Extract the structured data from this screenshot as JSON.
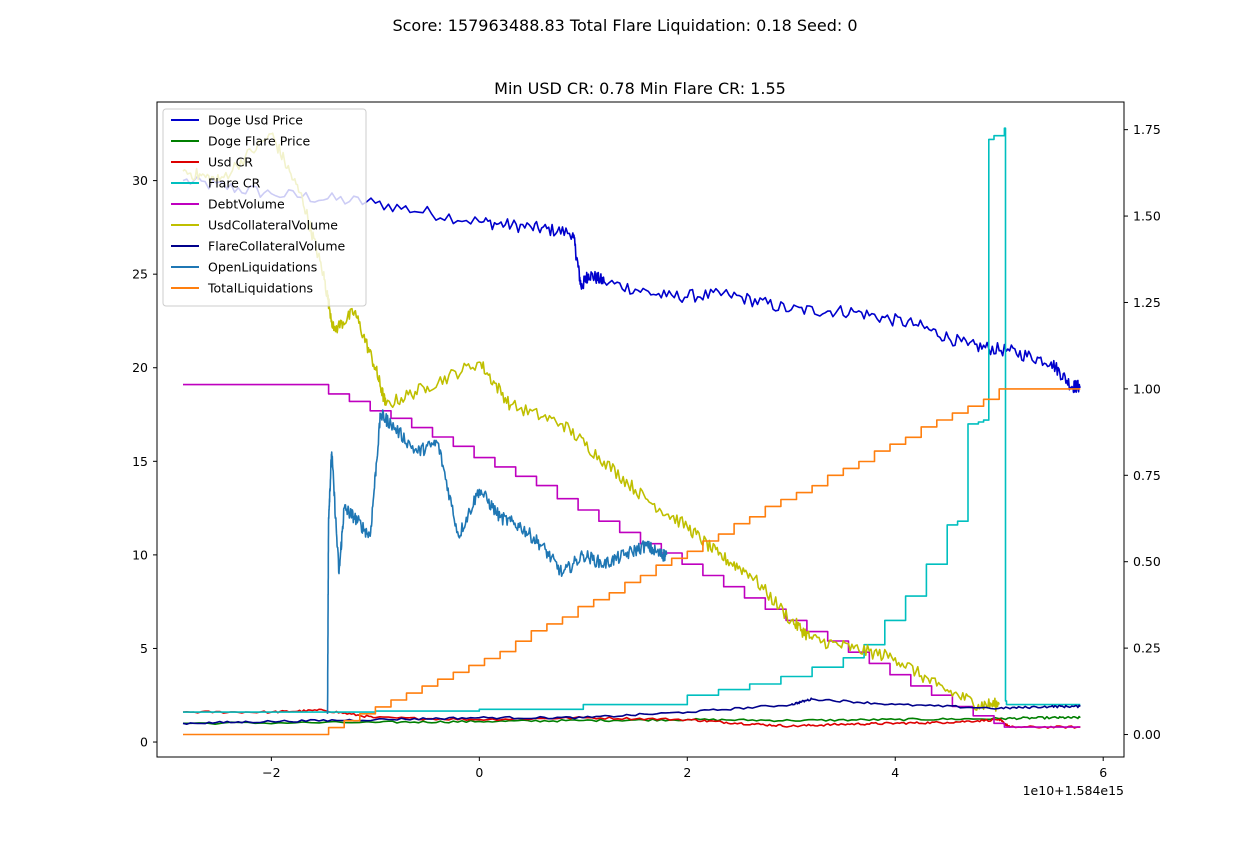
{
  "suptitle": "Score: 157963488.83 Total Flare Liquidation: 0.18 Seed: 0",
  "chart_data": {
    "type": "line",
    "title": "Min USD CR: 0.78 Min Flare CR: 1.55",
    "x_offset_label": "1e10+1.584e15",
    "xlim": [
      -3.1,
      6.2
    ],
    "ylim_left": [
      -0.8,
      34.2
    ],
    "ylim_right": [
      -0.065,
      1.83
    ],
    "x_ticks": [
      -2,
      0,
      2,
      4,
      6
    ],
    "x_tick_labels": [
      "−2",
      "0",
      "2",
      "4",
      "6"
    ],
    "y_left_ticks": [
      0,
      5,
      10,
      15,
      20,
      25,
      30
    ],
    "y_left_tick_labels": [
      "0",
      "5",
      "10",
      "15",
      "20",
      "25",
      "30"
    ],
    "y_right_ticks": [
      0,
      0.25,
      0.5,
      0.75,
      1.0,
      1.25,
      1.5,
      1.75
    ],
    "y_right_tick_labels": [
      "0.00",
      "0.25",
      "0.50",
      "0.75",
      "1.00",
      "1.25",
      "1.50",
      "1.75"
    ],
    "grid": false,
    "legend_position": "upper-left",
    "series": [
      {
        "name": "Doge Usd Price",
        "color": "#0000cc",
        "axis": "left",
        "style": "noisy",
        "x": [
          -2.85,
          -2.0,
          -1.0,
          0.0,
          0.5,
          0.9,
          0.98,
          1.05,
          1.2,
          1.8,
          2.4,
          3.0,
          3.6,
          4.2,
          4.7,
          5.1,
          5.5,
          5.7,
          5.78
        ],
        "y": [
          30.0,
          29.3,
          28.8,
          27.8,
          27.5,
          27.2,
          24.3,
          25.0,
          24.6,
          23.8,
          23.9,
          23.1,
          23.0,
          22.3,
          21.2,
          20.9,
          20.3,
          19.0,
          19.0
        ]
      },
      {
        "name": "Doge Flare Price",
        "color": "#007f00",
        "axis": "left",
        "style": "noisy",
        "x": [
          -2.85,
          -1.0,
          0.0,
          1.0,
          2.0,
          3.0,
          4.0,
          5.0,
          5.5,
          5.78
        ],
        "y": [
          1.0,
          1.05,
          1.1,
          1.15,
          1.2,
          1.15,
          1.2,
          1.25,
          1.3,
          1.3
        ]
      },
      {
        "name": "Usd CR",
        "color": "#dd0000",
        "axis": "left",
        "style": "noisy",
        "x": [
          -2.85,
          -2.0,
          -1.5,
          -1.0,
          0.0,
          1.0,
          2.0,
          2.5,
          3.0,
          3.5,
          4.0,
          4.5,
          5.0,
          5.1,
          5.78
        ],
        "y": [
          1.6,
          1.6,
          1.7,
          1.3,
          1.2,
          1.3,
          1.2,
          1.0,
          0.85,
          0.95,
          1.0,
          1.05,
          1.2,
          0.8,
          0.8
        ]
      },
      {
        "name": "Flare CR",
        "color": "#00bfbf",
        "axis": "left",
        "style": "steps",
        "x": [
          -2.85,
          -1.5,
          -1.0,
          0.0,
          1.0,
          2.0,
          2.3,
          2.6,
          2.9,
          3.2,
          3.5,
          3.7,
          3.9,
          4.1,
          4.3,
          4.5,
          4.6,
          4.7,
          4.8,
          4.85,
          4.9,
          4.95,
          5.05,
          5.06,
          5.07,
          5.78
        ],
        "y": [
          1.6,
          1.6,
          1.65,
          1.75,
          2.0,
          2.5,
          2.8,
          3.1,
          3.5,
          4.0,
          4.5,
          5.2,
          6.5,
          7.8,
          9.5,
          11.6,
          11.8,
          17.0,
          17.1,
          17.2,
          32.2,
          32.4,
          32.8,
          2.2,
          2.0,
          2.0
        ]
      },
      {
        "name": "DebtVolume",
        "color": "#bf00bf",
        "axis": "left",
        "style": "steps",
        "x": [
          -2.85,
          -1.45,
          -1.25,
          -1.05,
          -0.85,
          -0.65,
          -0.45,
          -0.25,
          -0.05,
          0.15,
          0.35,
          0.55,
          0.75,
          0.95,
          1.15,
          1.35,
          1.55,
          1.75,
          1.95,
          2.15,
          2.35,
          2.55,
          2.75,
          2.95,
          3.15,
          3.35,
          3.55,
          3.75,
          3.95,
          4.15,
          4.35,
          4.55,
          4.75,
          4.95,
          5.05,
          5.78
        ],
        "y": [
          19.1,
          18.6,
          18.2,
          17.7,
          17.3,
          16.8,
          16.3,
          15.8,
          15.2,
          14.7,
          14.2,
          13.7,
          13.0,
          12.4,
          11.8,
          11.2,
          10.6,
          10.1,
          9.5,
          8.9,
          8.3,
          7.7,
          7.1,
          6.5,
          5.9,
          5.4,
          4.8,
          4.2,
          3.6,
          3.0,
          2.5,
          1.9,
          1.4,
          1.0,
          0.8,
          0.8
        ]
      },
      {
        "name": "UsdCollateralVolume",
        "color": "#bfbf00",
        "axis": "left",
        "style": "noisy",
        "x": [
          -2.85,
          -2.5,
          -2.0,
          -1.7,
          -1.5,
          -1.4,
          -1.2,
          -1.0,
          -0.9,
          -0.5,
          0.0,
          0.3,
          0.8,
          1.2,
          1.6,
          2.0,
          2.3,
          2.6,
          3.0,
          3.2,
          3.6,
          4.0,
          4.4,
          4.8,
          5.0
        ],
        "y": [
          30.5,
          30.0,
          32.5,
          29.0,
          25.0,
          22.0,
          23.0,
          20.0,
          18.0,
          19.0,
          20.3,
          18.0,
          17.0,
          15.0,
          13.0,
          11.5,
          10.0,
          9.0,
          6.5,
          5.5,
          5.0,
          4.5,
          3.0,
          2.0,
          2.0
        ]
      },
      {
        "name": "FlareCollateralVolume",
        "color": "#00008b",
        "axis": "left",
        "style": "noisy",
        "x": [
          -2.85,
          -2.0,
          -1.0,
          0.0,
          1.0,
          2.0,
          3.0,
          3.2,
          4.0,
          5.0,
          5.5,
          5.78
        ],
        "y": [
          1.0,
          1.1,
          1.2,
          1.3,
          1.3,
          1.6,
          2.0,
          2.3,
          2.0,
          1.8,
          1.9,
          1.9
        ]
      },
      {
        "name": "OpenLiquidations",
        "color": "#1f77b4",
        "axis": "left",
        "style": "noisy",
        "x": [
          -1.46,
          -1.45,
          -1.42,
          -1.35,
          -1.3,
          -1.2,
          -1.05,
          -0.95,
          -0.85,
          -0.6,
          -0.4,
          -0.2,
          0.0,
          0.2,
          0.4,
          0.6,
          0.8,
          1.0,
          1.2,
          1.4,
          1.6,
          1.75,
          1.8
        ],
        "y": [
          1.5,
          12.0,
          15.5,
          9.0,
          12.5,
          12.0,
          11.0,
          17.5,
          17.0,
          15.5,
          16.0,
          11.0,
          13.5,
          12.0,
          11.5,
          10.5,
          9.0,
          10.0,
          9.5,
          10.0,
          10.5,
          10.0,
          10.0
        ]
      },
      {
        "name": "TotalLiquidations",
        "color": "#ff7f0e",
        "axis": "right",
        "style": "steps",
        "x": [
          -2.85,
          -1.45,
          -1.3,
          -1.15,
          -1.0,
          -0.85,
          -0.7,
          -0.55,
          -0.4,
          -0.25,
          -0.1,
          0.05,
          0.2,
          0.35,
          0.5,
          0.65,
          0.8,
          0.95,
          1.1,
          1.25,
          1.4,
          1.55,
          1.7,
          1.85,
          2.0,
          2.15,
          2.3,
          2.45,
          2.6,
          2.75,
          2.9,
          3.05,
          3.2,
          3.35,
          3.5,
          3.65,
          3.8,
          3.95,
          4.1,
          4.25,
          4.4,
          4.55,
          4.7,
          4.85,
          5.0,
          5.78
        ],
        "y": [
          0.0,
          0.02,
          0.04,
          0.06,
          0.08,
          0.1,
          0.12,
          0.14,
          0.16,
          0.18,
          0.2,
          0.22,
          0.24,
          0.27,
          0.3,
          0.32,
          0.34,
          0.37,
          0.39,
          0.41,
          0.44,
          0.46,
          0.49,
          0.51,
          0.53,
          0.56,
          0.58,
          0.61,
          0.63,
          0.66,
          0.68,
          0.7,
          0.72,
          0.75,
          0.77,
          0.79,
          0.82,
          0.84,
          0.86,
          0.89,
          0.91,
          0.93,
          0.95,
          0.97,
          1.0,
          1.0
        ]
      }
    ]
  }
}
